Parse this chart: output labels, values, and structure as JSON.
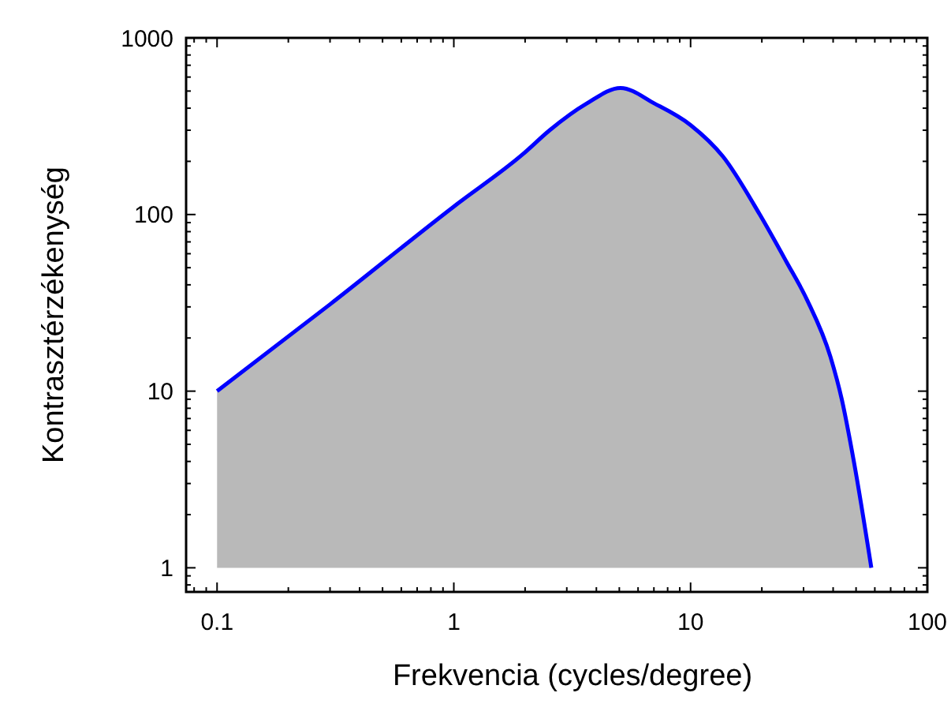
{
  "chart_data": {
    "type": "area",
    "xlabel": "Frekvencia (cycles/degree)",
    "ylabel": "Kontrasztérzékenység",
    "log": "xy",
    "xlim": [
      0.074,
      100
    ],
    "ylim": [
      0.73,
      1000
    ],
    "xticks": [
      0.1,
      1,
      10,
      100
    ],
    "yticks": [
      1,
      10,
      100,
      1000
    ],
    "grid": false,
    "x": [
      0.1,
      0.3,
      1,
      1.96,
      2.54,
      3.63,
      5.06,
      7.06,
      10,
      13.7,
      19.6,
      25.4,
      31,
      39,
      43.5,
      49,
      58
    ],
    "series": [
      {
        "color": "#0000ff",
        "values": [
          10,
          31,
          111,
          220,
          300,
          424,
          520,
          424,
          321,
          213,
          100,
          54,
          33,
          15.6,
          9,
          3.96,
          1
        ]
      }
    ]
  }
}
